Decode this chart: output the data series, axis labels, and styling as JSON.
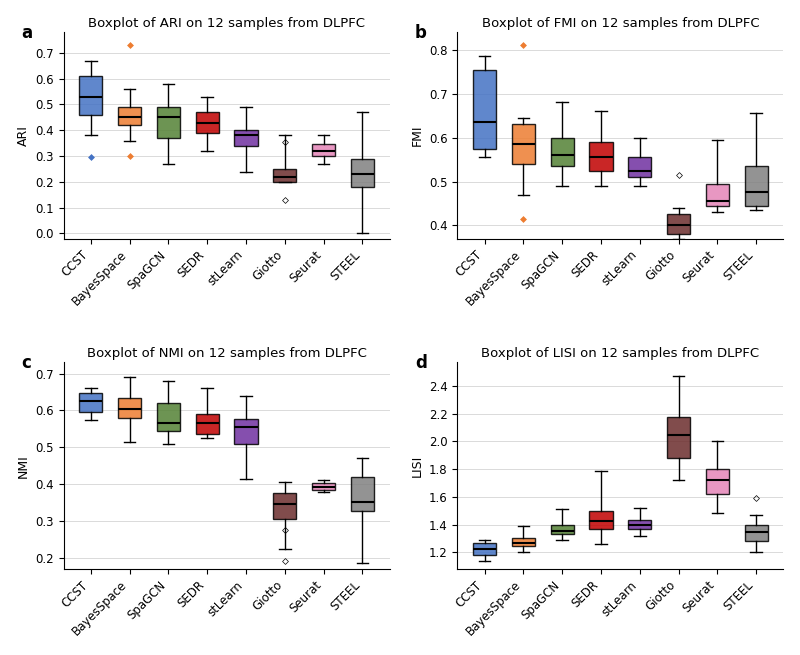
{
  "categories": [
    "CCST",
    "BayesSpace",
    "SpaGCN",
    "SEDR",
    "stLearn",
    "Giotto",
    "Seurat",
    "STEEL"
  ],
  "colors": [
    "#4472c4",
    "#ed7d31",
    "#548235",
    "#c00000",
    "#7030a0",
    "#6b2c2c",
    "#e585b8",
    "#808080"
  ],
  "panels": [
    {
      "label": "a",
      "title": "Boxplot of ARI on 12 samples from DLPFC",
      "ylabel": "ARI",
      "ylim": [
        -0.02,
        0.78
      ],
      "yticks": [
        0.0,
        0.1,
        0.2,
        0.3,
        0.4,
        0.5,
        0.6,
        0.7
      ],
      "data": [
        {
          "whislo": 0.38,
          "q1": 0.46,
          "med": 0.53,
          "q3": 0.61,
          "whishi": 0.67,
          "fliers": [
            0.295
          ]
        },
        {
          "whislo": 0.36,
          "q1": 0.42,
          "med": 0.45,
          "q3": 0.49,
          "whishi": 0.56,
          "fliers": [
            0.3,
            0.73
          ]
        },
        {
          "whislo": 0.27,
          "q1": 0.37,
          "med": 0.45,
          "q3": 0.49,
          "whishi": 0.58,
          "fliers": []
        },
        {
          "whislo": 0.32,
          "q1": 0.39,
          "med": 0.43,
          "q3": 0.47,
          "whishi": 0.53,
          "fliers": []
        },
        {
          "whislo": 0.24,
          "q1": 0.34,
          "med": 0.38,
          "q3": 0.4,
          "whishi": 0.49,
          "fliers": []
        },
        {
          "whislo": 0.2,
          "q1": 0.2,
          "med": 0.22,
          "q3": 0.25,
          "whishi": 0.38,
          "fliers": [
            0.355,
            0.13
          ]
        },
        {
          "whislo": 0.27,
          "q1": 0.3,
          "med": 0.32,
          "q3": 0.345,
          "whishi": 0.38,
          "fliers": []
        },
        {
          "whislo": 0.0,
          "q1": 0.18,
          "med": 0.23,
          "q3": 0.29,
          "whishi": 0.47,
          "fliers": []
        }
      ]
    },
    {
      "label": "b",
      "title": "Boxplot of FMI on 12 samples from DLPFC",
      "ylabel": "FMI",
      "ylim": [
        0.37,
        0.84
      ],
      "yticks": [
        0.4,
        0.5,
        0.6,
        0.7,
        0.8
      ],
      "data": [
        {
          "whislo": 0.555,
          "q1": 0.575,
          "med": 0.635,
          "q3": 0.755,
          "whishi": 0.785,
          "fliers": []
        },
        {
          "whislo": 0.47,
          "q1": 0.54,
          "med": 0.585,
          "q3": 0.63,
          "whishi": 0.645,
          "fliers": [
            0.415,
            0.81
          ]
        },
        {
          "whislo": 0.49,
          "q1": 0.535,
          "med": 0.56,
          "q3": 0.6,
          "whishi": 0.68,
          "fliers": []
        },
        {
          "whislo": 0.49,
          "q1": 0.525,
          "med": 0.555,
          "q3": 0.59,
          "whishi": 0.66,
          "fliers": []
        },
        {
          "whislo": 0.49,
          "q1": 0.51,
          "med": 0.525,
          "q3": 0.555,
          "whishi": 0.6,
          "fliers": []
        },
        {
          "whislo": 0.37,
          "q1": 0.38,
          "med": 0.4,
          "q3": 0.425,
          "whishi": 0.44,
          "fliers": [
            0.515
          ]
        },
        {
          "whislo": 0.43,
          "q1": 0.445,
          "med": 0.455,
          "q3": 0.495,
          "whishi": 0.595,
          "fliers": []
        },
        {
          "whislo": 0.435,
          "q1": 0.445,
          "med": 0.475,
          "q3": 0.535,
          "whishi": 0.655,
          "fliers": []
        }
      ]
    },
    {
      "label": "c",
      "title": "Boxplot of NMI on 12 samples from DLPFC",
      "ylabel": "NMI",
      "ylim": [
        0.17,
        0.73
      ],
      "yticks": [
        0.2,
        0.3,
        0.4,
        0.5,
        0.6,
        0.7
      ],
      "data": [
        {
          "whislo": 0.575,
          "q1": 0.595,
          "med": 0.625,
          "q3": 0.648,
          "whishi": 0.66,
          "fliers": []
        },
        {
          "whislo": 0.515,
          "q1": 0.58,
          "med": 0.603,
          "q3": 0.633,
          "whishi": 0.69,
          "fliers": []
        },
        {
          "whislo": 0.51,
          "q1": 0.545,
          "med": 0.565,
          "q3": 0.62,
          "whishi": 0.68,
          "fliers": []
        },
        {
          "whislo": 0.525,
          "q1": 0.535,
          "med": 0.565,
          "q3": 0.59,
          "whishi": 0.66,
          "fliers": []
        },
        {
          "whislo": 0.415,
          "q1": 0.51,
          "med": 0.555,
          "q3": 0.578,
          "whishi": 0.638,
          "fliers": []
        },
        {
          "whislo": 0.225,
          "q1": 0.305,
          "med": 0.345,
          "q3": 0.375,
          "whishi": 0.405,
          "fliers": [
            0.275,
            0.19
          ]
        },
        {
          "whislo": 0.378,
          "q1": 0.383,
          "med": 0.393,
          "q3": 0.402,
          "whishi": 0.412,
          "fliers": []
        },
        {
          "whislo": 0.185,
          "q1": 0.328,
          "med": 0.352,
          "q3": 0.418,
          "whishi": 0.47,
          "fliers": []
        }
      ]
    },
    {
      "label": "d",
      "title": "Boxplot of LISI on 12 samples from DLPFC",
      "ylabel": "LISI",
      "ylim": [
        1.08,
        2.57
      ],
      "yticks": [
        1.2,
        1.4,
        1.6,
        1.8,
        2.0,
        2.2,
        2.4
      ],
      "data": [
        {
          "whislo": 1.14,
          "q1": 1.18,
          "med": 1.225,
          "q3": 1.265,
          "whishi": 1.285,
          "fliers": []
        },
        {
          "whislo": 1.2,
          "q1": 1.245,
          "med": 1.265,
          "q3": 1.305,
          "whishi": 1.39,
          "fliers": []
        },
        {
          "whislo": 1.29,
          "q1": 1.33,
          "med": 1.355,
          "q3": 1.395,
          "whishi": 1.515,
          "fliers": []
        },
        {
          "whislo": 1.26,
          "q1": 1.365,
          "med": 1.425,
          "q3": 1.5,
          "whishi": 1.79,
          "fliers": []
        },
        {
          "whislo": 1.32,
          "q1": 1.365,
          "med": 1.395,
          "q3": 1.43,
          "whishi": 1.52,
          "fliers": []
        },
        {
          "whislo": 1.72,
          "q1": 1.88,
          "med": 2.045,
          "q3": 2.175,
          "whishi": 2.47,
          "fliers": []
        },
        {
          "whislo": 1.48,
          "q1": 1.62,
          "med": 1.725,
          "q3": 1.8,
          "whishi": 2.0,
          "fliers": []
        },
        {
          "whislo": 1.2,
          "q1": 1.28,
          "med": 1.345,
          "q3": 1.4,
          "whishi": 1.47,
          "fliers": [
            1.595
          ]
        }
      ]
    }
  ],
  "fig_width": 8.0,
  "fig_height": 6.55,
  "background_color": "#ffffff"
}
